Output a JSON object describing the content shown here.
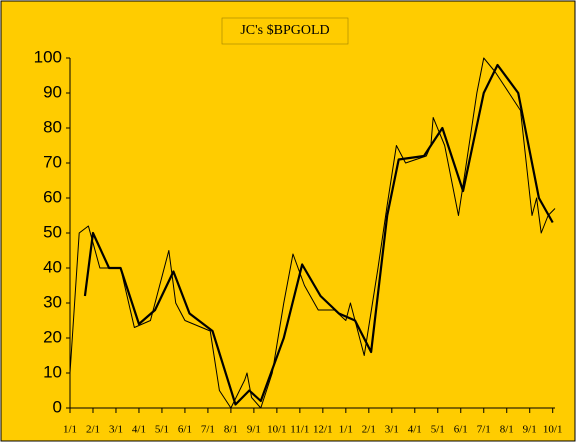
{
  "chart_data": {
    "type": "line",
    "title": "JC's $BPGOLD",
    "xlim": [
      0,
      21.1
    ],
    "ylim": [
      0,
      100
    ],
    "yticks": [
      0,
      10,
      20,
      30,
      40,
      50,
      60,
      70,
      80,
      90,
      100
    ],
    "xticks": [
      {
        "value": 0,
        "label": "1/1"
      },
      {
        "value": 1,
        "label": "2/1"
      },
      {
        "value": 2,
        "label": "3/1"
      },
      {
        "value": 3,
        "label": "4/1"
      },
      {
        "value": 4,
        "label": "5/1"
      },
      {
        "value": 5,
        "label": "6/1"
      },
      {
        "value": 6,
        "label": "7/1"
      },
      {
        "value": 7,
        "label": "8/1"
      },
      {
        "value": 8,
        "label": "9/1"
      },
      {
        "value": 9,
        "label": "10/1"
      },
      {
        "value": 10,
        "label": "11/1"
      },
      {
        "value": 11,
        "label": "12/1"
      },
      {
        "value": 12,
        "label": "1/1"
      },
      {
        "value": 13,
        "label": "2/1"
      },
      {
        "value": 14,
        "label": "3/1"
      },
      {
        "value": 15,
        "label": "4/1"
      },
      {
        "value": 16,
        "label": "5/1"
      },
      {
        "value": 17,
        "label": "6/1"
      },
      {
        "value": 18,
        "label": "7/1"
      },
      {
        "value": 19,
        "label": "8/1"
      },
      {
        "value": 20,
        "label": "9/1"
      },
      {
        "value": 21,
        "label": "10/1"
      }
    ],
    "series": [
      {
        "color": "#000000",
        "width": 1,
        "x": [
          0,
          0.4,
          0.8,
          1.3,
          2.2,
          2.8,
          3.5,
          3.7,
          4.3,
          4.6,
          5,
          6.1,
          6.5,
          7,
          7.6,
          7.7,
          7.9,
          8.3,
          8.8,
          9.3,
          9.7,
          10.2,
          10.8,
          11.5,
          12,
          12.2,
          12.8,
          13.4,
          13.8,
          14.2,
          14.6,
          15.5,
          15.7,
          15.8,
          16.3,
          16.9,
          17.2,
          17.7,
          18,
          18.5,
          19.1,
          19.6,
          20.1,
          20.3,
          20.5,
          20.8,
          21.1
        ],
        "values": [
          10,
          50,
          52,
          40,
          40,
          23,
          25,
          30,
          45,
          30,
          25,
          22,
          5,
          0,
          8,
          10,
          3,
          0,
          10,
          30,
          44,
          35,
          28,
          28,
          25,
          30,
          15,
          40,
          58,
          75,
          70,
          72,
          75,
          83,
          75,
          55,
          68,
          90,
          100,
          96,
          90,
          85,
          55,
          60,
          50,
          55,
          57
        ]
      },
      {
        "color": "#000000",
        "width": 2.2,
        "x": [
          0.65,
          1,
          1.7,
          2.2,
          3,
          3.7,
          4.5,
          5.2,
          6.2,
          7.2,
          7.8,
          8.3,
          9.3,
          10.1,
          10.9,
          11.7,
          12.4,
          13.1,
          13.8,
          14.3,
          15.4,
          16.2,
          17.1,
          18,
          18.6,
          19.5,
          20.4,
          21
        ],
        "values": [
          32,
          50,
          40,
          40,
          24,
          28,
          39,
          27,
          22,
          1,
          5,
          2,
          20,
          41,
          32,
          27,
          25,
          16,
          55,
          71,
          72,
          80,
          62,
          90,
          98,
          90,
          60,
          53
        ]
      }
    ]
  }
}
